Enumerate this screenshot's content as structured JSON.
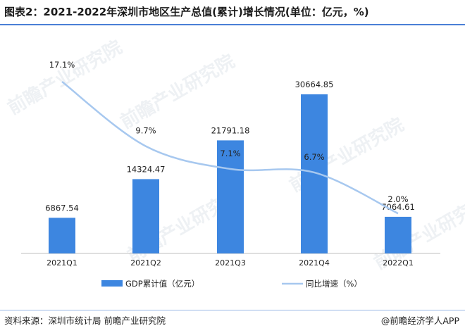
{
  "title": "图表2：2021-2022年深圳市地区生产总值(累计)增长情况(单位：亿元，%)",
  "source": "资料来源：深圳市统计局 前瞻产业研究院",
  "brand": "@前瞻经济学人APP",
  "watermark": "前瞻产业研究院",
  "colors": {
    "bar": "#3d86e0",
    "line": "#a7c8ef",
    "accent": "#4a7fd6"
  },
  "chart_data": {
    "type": "bar",
    "categories": [
      "2021Q1",
      "2021Q2",
      "2021Q3",
      "2021Q4",
      "2022Q1"
    ],
    "series": [
      {
        "name": "GDP累计值（亿元）",
        "type": "bar",
        "values": [
          6867.54,
          14324.47,
          21791.18,
          30664.85,
          7064.61
        ],
        "labels": [
          "6867.54",
          "14324.47",
          "21791.18",
          "30664.85",
          "7064.61"
        ]
      },
      {
        "name": "同比增速（%）",
        "type": "line",
        "values": [
          17.1,
          9.7,
          7.1,
          6.7,
          2.0
        ],
        "labels": [
          "17.1%",
          "9.7%",
          "7.1%",
          "6.7%",
          "2.0%"
        ]
      }
    ],
    "legend_position": "bottom"
  }
}
